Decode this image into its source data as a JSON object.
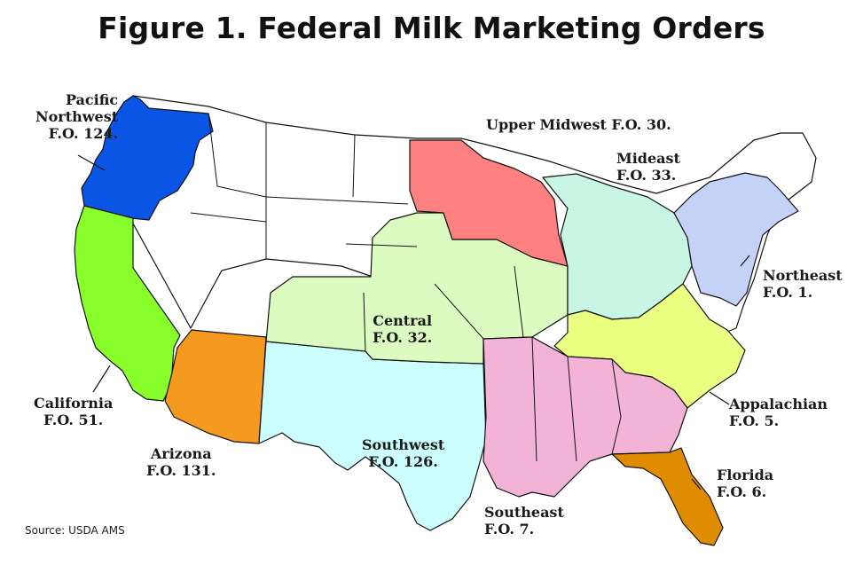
{
  "title": "Figure 1. Federal Milk Marketing Orders",
  "source": "Source: USDA AMS",
  "colors": {
    "pacific_northwest": "#0a55e6",
    "california": "#88ff2a",
    "arizona": "#f59a1f",
    "southwest": "#ccfdfd",
    "central": "#dcfbc0",
    "upper_midwest": "#ff8080",
    "mideast": "#c9f5e4",
    "northeast": "#c4d2f7",
    "appalachian": "#ebff80",
    "southeast": "#f2b3d6",
    "florida": "#e08c00",
    "unregulated": "#ffffff"
  },
  "regions": {
    "pacific_northwest": {
      "line1": "Pacific",
      "line2": "Northwest",
      "line3": "F.O. 124."
    },
    "upper_midwest": {
      "line1": "Upper Midwest F.O. 30."
    },
    "mideast": {
      "line1": "Mideast",
      "line2": "F.O. 33."
    },
    "northeast": {
      "line1": "Northeast",
      "line2": "F.O. 1."
    },
    "central": {
      "line1": "Central",
      "line2": "F.O. 32."
    },
    "california": {
      "line1": "California",
      "line2": "F.O. 51."
    },
    "arizona": {
      "line1": "Arizona",
      "line2": "F.O. 131."
    },
    "southwest": {
      "line1": "Southwest",
      "line2": "F.O. 126."
    },
    "appalachian": {
      "line1": "Appalachian",
      "line2": "F.O. 5."
    },
    "florida": {
      "line1": "Florida",
      "line2": "F.O. 6."
    },
    "southeast": {
      "line1": "Southeast",
      "line2": "F.O. 7."
    }
  }
}
